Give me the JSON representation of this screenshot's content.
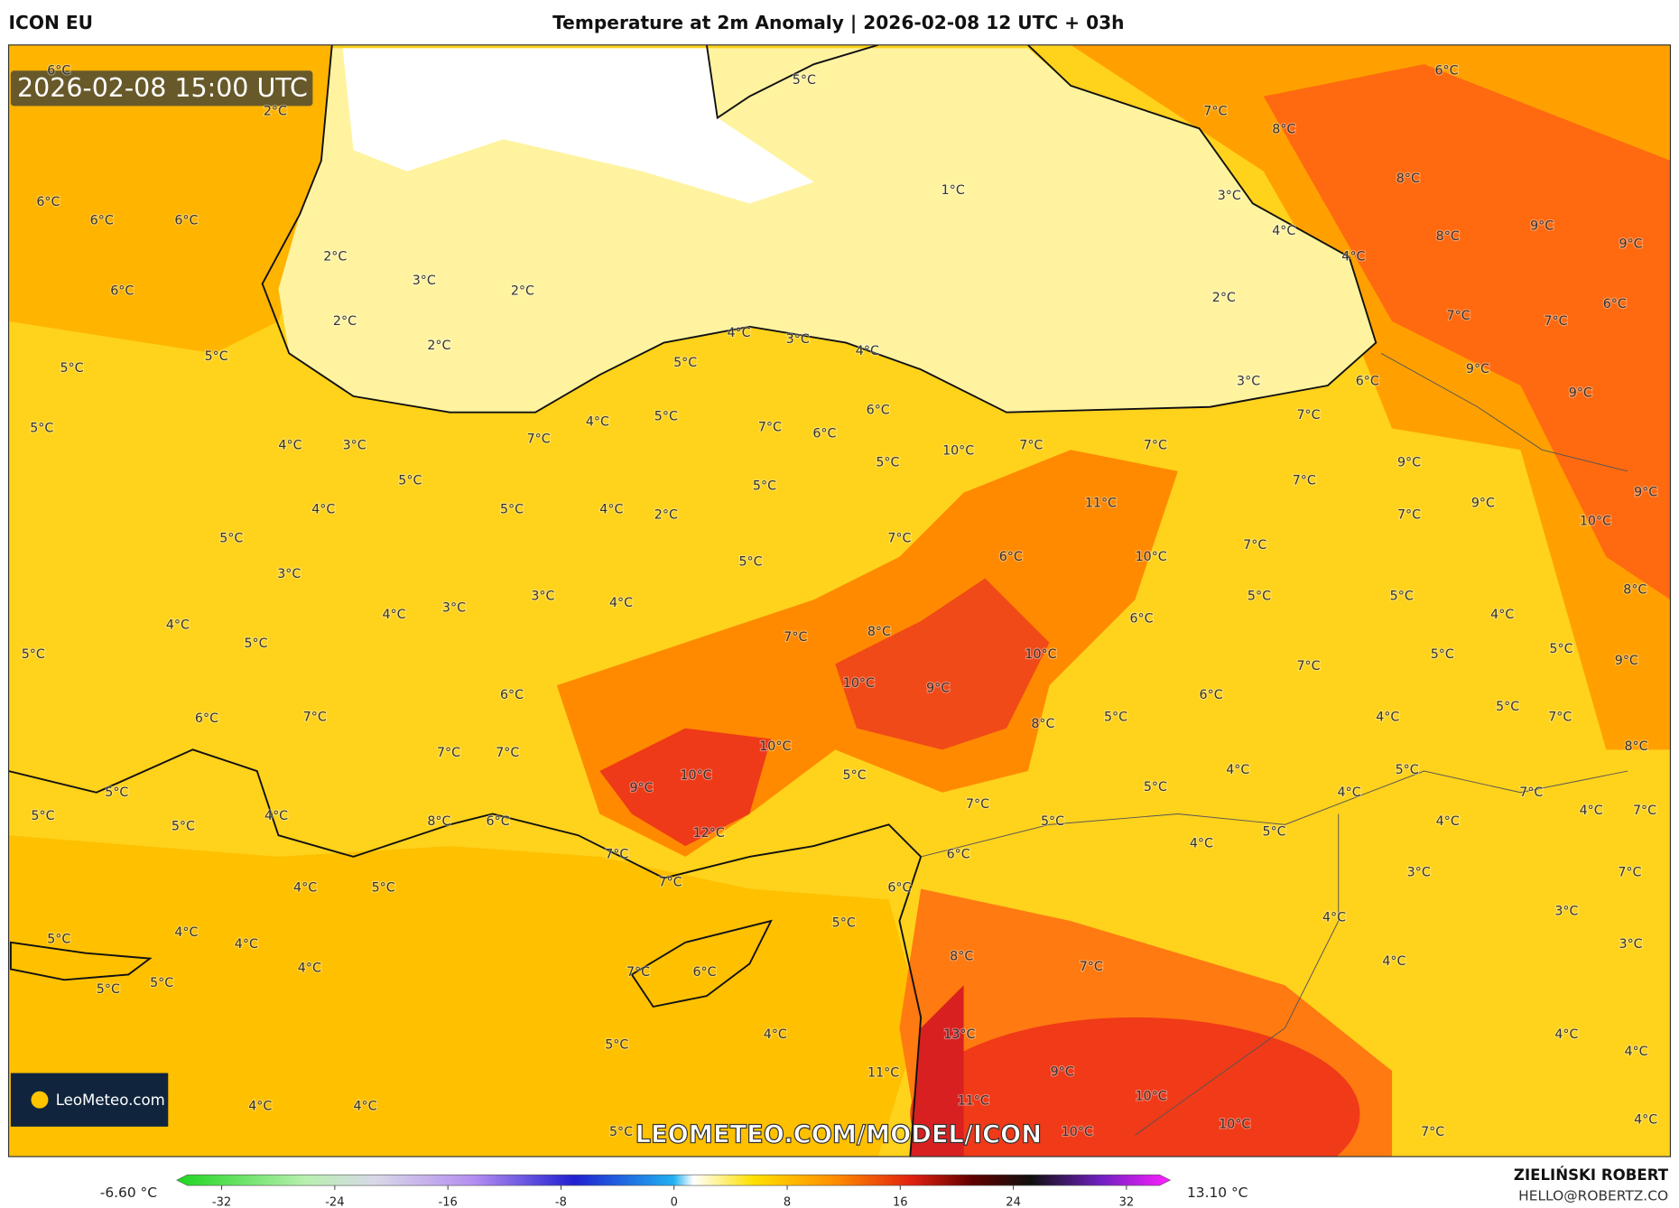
{
  "header": {
    "model": "ICON EU",
    "title": "Temperature at 2m Anomaly | 2026-02-08 12 UTC + 03h"
  },
  "map": {
    "timestamp": "2026-02-08 15:00 UTC",
    "watermark": "LEOMETEO.COM/MODEL/ICON",
    "logo": "LeoMeteo.com",
    "labels": [
      "6°C",
      "2°C",
      "6°C",
      "6°C",
      "6°C",
      "2°C",
      "3°C",
      "2°C",
      "2°C",
      "2°C",
      "6°C",
      "5°C",
      "5°C",
      "5°C",
      "4°C",
      "3°C",
      "5°C",
      "4°C",
      "5°C",
      "5°C",
      "3°C",
      "4°C",
      "3°C",
      "3°C",
      "4°C",
      "4°C",
      "2°C",
      "4°C",
      "5°C",
      "5°C",
      "6°C",
      "7°C",
      "6°C",
      "7°C",
      "7°C",
      "5°C",
      "5°C",
      "4°C",
      "5°C",
      "8°C",
      "6°C",
      "4°C",
      "5°C",
      "4°C",
      "4°C",
      "5°C",
      "4°C",
      "5°C",
      "5°C",
      "9°C",
      "10°C",
      "10°C",
      "12°C",
      "7°C",
      "7°C",
      "7°C",
      "6°C",
      "5°C",
      "5°C",
      "4°C",
      "4°C",
      "4°C",
      "5°C",
      "5°C",
      "1°C",
      "2°C",
      "3°C",
      "4°C",
      "3°C",
      "4°C",
      "5°C",
      "5°C",
      "4°C",
      "7°C",
      "7°C",
      "6°C",
      "6°C",
      "5°C",
      "5°C",
      "5°C",
      "7°C",
      "6°C",
      "10°C",
      "7°C",
      "7°C",
      "11°C",
      "10°C",
      "7°C",
      "8°C",
      "10°C",
      "9°C",
      "10°C",
      "8°C",
      "5°C",
      "7°C",
      "5°C",
      "5°C",
      "6°C",
      "6°C",
      "5°C",
      "7°C",
      "7°C",
      "7°C",
      "9°C",
      "7°C",
      "5°C",
      "5°C",
      "4°C",
      "5°C",
      "4°C",
      "4°C",
      "5°C",
      "5°C",
      "4°C",
      "4°C",
      "7°C",
      "4°C",
      "5°C",
      "7°C",
      "5°C",
      "9°C",
      "8°C",
      "8°C",
      "9°C",
      "10°C",
      "9°C",
      "9°C",
      "9°C",
      "7°C",
      "7°C",
      "6°C",
      "9°C",
      "9°C",
      "8°C",
      "8°C",
      "8°C",
      "7°C",
      "6°C",
      "3°C",
      "4°C",
      "4°C",
      "6°C",
      "7°C",
      "3°C",
      "4°C",
      "4°C",
      "3°C",
      "3°C",
      "4°C",
      "7°C",
      "7°C",
      "4°C",
      "4°C",
      "4°C",
      "7°C",
      "10°C",
      "10°C",
      "10°C",
      "11°C",
      "9°C",
      "11°C",
      "13°C",
      "7°C",
      "8°C",
      "6°C",
      "6°C"
    ]
  },
  "colorbar": {
    "min_label": "-6.60 °C",
    "max_label": "13.10 °C",
    "ticks": [
      -32,
      -24,
      -16,
      -8,
      0,
      8,
      16,
      24,
      32
    ]
  },
  "footer": {
    "author": "ZIELIŃSKI ROBERT",
    "email": "HELLO@ROBERTZ.CO"
  }
}
